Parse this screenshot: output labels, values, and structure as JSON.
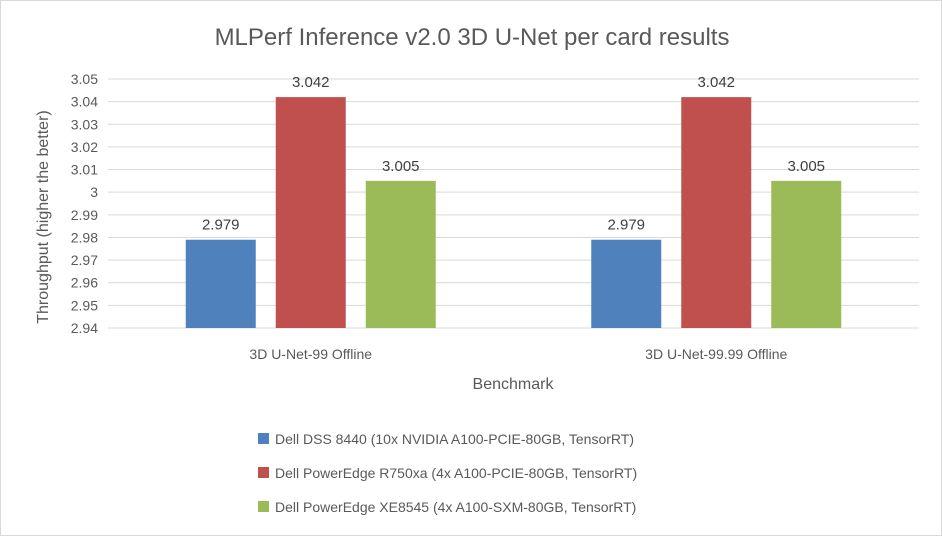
{
  "chart_data": {
    "type": "bar",
    "title": "MLPerf Inference v2.0 3D U-Net per card results",
    "xlabel": "Benchmark",
    "ylabel": "Throughput (higher the better)",
    "categories": [
      "3D U-Net-99 Offline",
      "3D U-Net-99.99 Offline"
    ],
    "ylim": [
      2.94,
      3.05
    ],
    "yticks": [
      2.94,
      2.95,
      2.96,
      2.97,
      2.98,
      2.99,
      3,
      3.01,
      3.02,
      3.03,
      3.04,
      3.05
    ],
    "ytick_labels": [
      "2.94",
      "2.95",
      "2.96",
      "2.97",
      "2.98",
      "2.99",
      "3",
      "3.01",
      "3.02",
      "3.03",
      "3.04",
      "3.05"
    ],
    "grid": true,
    "legend_position": "bottom",
    "series": [
      {
        "name": "Dell DSS 8440 (10x NVIDIA A100-PCIE-80GB, TensorRT)",
        "values": [
          2.979,
          2.979
        ],
        "labels": [
          "2.979",
          "2.979"
        ],
        "color": "#4f81bd"
      },
      {
        "name": "Dell PowerEdge R750xa (4x A100-PCIE-80GB, TensorRT)",
        "values": [
          3.042,
          3.042
        ],
        "labels": [
          "3.042",
          "3.042"
        ],
        "color": "#c0504d"
      },
      {
        "name": "Dell PowerEdge XE8545 (4x A100-SXM-80GB, TensorRT)",
        "values": [
          3.005,
          3.005
        ],
        "labels": [
          "3.005",
          "3.005"
        ],
        "color": "#9bbb59"
      }
    ]
  }
}
